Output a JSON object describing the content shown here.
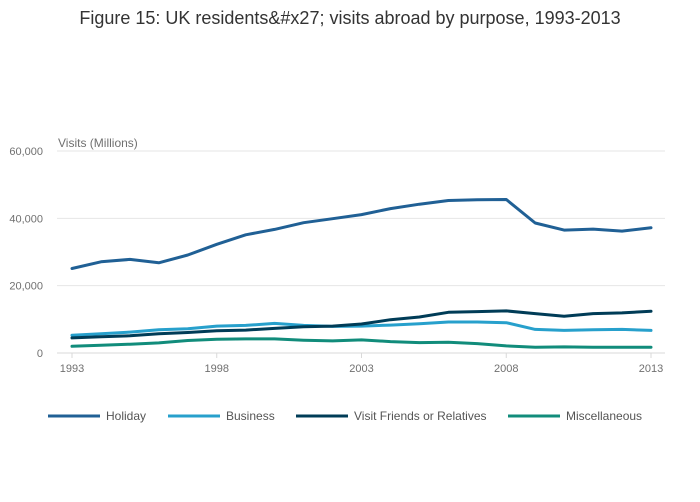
{
  "chart_data": {
    "type": "line",
    "title": "Figure 15: UK residents&#x27; visits abroad by purpose, 1993-2013",
    "ylabel": "Visits (Millions)",
    "xlabel": "",
    "xlim": [
      1993,
      2013
    ],
    "ylim": [
      0,
      60000
    ],
    "x_ticks": [
      1993,
      1998,
      2003,
      2008,
      2013
    ],
    "y_ticks": [
      0,
      20000,
      40000,
      60000
    ],
    "y_tick_labels": [
      "0",
      "20,000",
      "40,000",
      "60,000"
    ],
    "grid": true,
    "legend_position": "bottom",
    "x": [
      1993,
      1994,
      1995,
      1996,
      1997,
      1998,
      1999,
      2000,
      2001,
      2002,
      2003,
      2004,
      2005,
      2006,
      2007,
      2008,
      2009,
      2010,
      2011,
      2012,
      2013
    ],
    "series": [
      {
        "name": "Holiday",
        "color": "#206095",
        "values": [
          25100,
          27100,
          27800,
          26800,
          29100,
          32300,
          35100,
          36700,
          38700,
          39900,
          41100,
          42900,
          44200,
          45300,
          45500,
          45600,
          38600,
          36500,
          36800,
          36200,
          37200
        ]
      },
      {
        "name": "Business",
        "color": "#27A0CC",
        "values": [
          5300,
          5700,
          6200,
          6900,
          7200,
          8000,
          8200,
          8800,
          8200,
          7900,
          8000,
          8300,
          8700,
          9200,
          9200,
          9000,
          7000,
          6700,
          6900,
          7000,
          6700
        ]
      },
      {
        "name": "Visit Friends or Relatives",
        "color": "#003C57",
        "values": [
          4500,
          4800,
          5100,
          5700,
          6100,
          6600,
          6800,
          7300,
          7800,
          8000,
          8600,
          9900,
          10700,
          12100,
          12300,
          12500,
          11700,
          10900,
          11700,
          11900,
          12400
        ]
      },
      {
        "name": "Miscellaneous",
        "color": "#118C7B",
        "values": [
          2000,
          2300,
          2600,
          3000,
          3700,
          4100,
          4200,
          4200,
          3800,
          3600,
          3900,
          3400,
          3100,
          3200,
          2800,
          2100,
          1700,
          1800,
          1700,
          1700,
          1700
        ]
      }
    ]
  }
}
